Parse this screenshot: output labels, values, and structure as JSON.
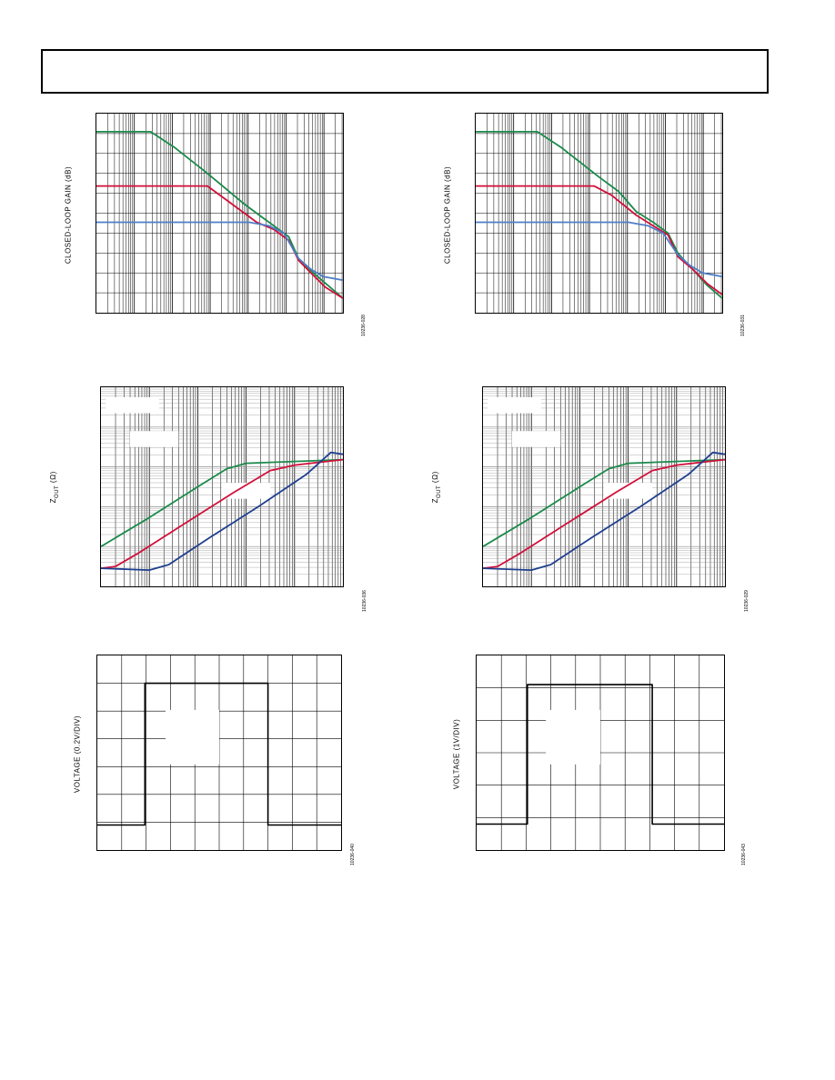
{
  "charts": [
    {
      "id": "gain-left",
      "ylabel": "CLOSED-LOOP GAIN (dB)",
      "code": "10236-028"
    },
    {
      "id": "gain-right",
      "ylabel": "CLOSED-LOOP GAIN (dB)",
      "code": "10236-031"
    },
    {
      "id": "zout-left",
      "ylabel_main": "Z",
      "ylabel_sub": "OUT",
      "ylabel_unit": "(Ω)",
      "code": "10236-036"
    },
    {
      "id": "zout-right",
      "ylabel_main": "Z",
      "ylabel_sub": "OUT",
      "ylabel_unit": "(Ω)",
      "code": "10236-029"
    },
    {
      "id": "pulse-left",
      "ylabel": "VOLTAGE (0.2V/DIV)",
      "code": "10236-040"
    },
    {
      "id": "pulse-right",
      "ylabel": "VOLTAGE (1V/DIV)",
      "code": "10236-043"
    }
  ],
  "colors": {
    "green": "#1a8a4a",
    "red": "#d0103a",
    "blue": "#1f3f8f",
    "lightblue": "#4f7fc8",
    "black": "#000000"
  },
  "chart_data": [
    {
      "type": "line",
      "xscale": "log",
      "x_decades": 6.5,
      "grid": true,
      "series": [
        {
          "color": "green",
          "points": [
            [
              0,
              100
            ],
            [
              0.22,
              100
            ],
            [
              0.32,
              91
            ],
            [
              0.45,
              77
            ],
            [
              0.6,
              60
            ],
            [
              0.68,
              52
            ],
            [
              0.78,
              42
            ],
            [
              0.82,
              30
            ],
            [
              0.88,
              22
            ],
            [
              0.94,
              15
            ],
            [
              1.0,
              8
            ]
          ]
        },
        {
          "color": "red",
          "points": [
            [
              0,
              70
            ],
            [
              0.45,
              70
            ],
            [
              0.55,
              60
            ],
            [
              0.65,
              50
            ],
            [
              0.72,
              46
            ],
            [
              0.78,
              40
            ],
            [
              0.82,
              29
            ],
            [
              0.87,
              22
            ],
            [
              0.93,
              14
            ],
            [
              1.0,
              8
            ]
          ]
        },
        {
          "color": "lightblue",
          "points": [
            [
              0,
              50
            ],
            [
              0.62,
              50
            ],
            [
              0.7,
              48
            ],
            [
              0.76,
              44
            ],
            [
              0.82,
              30
            ],
            [
              0.87,
              24
            ],
            [
              0.92,
              20
            ],
            [
              1.0,
              18
            ]
          ]
        }
      ]
    },
    {
      "type": "line",
      "xscale": "log",
      "x_decades": 6.5,
      "grid": true,
      "series": [
        {
          "color": "green",
          "points": [
            [
              0,
              100
            ],
            [
              0.25,
              100
            ],
            [
              0.35,
              91
            ],
            [
              0.5,
              75
            ],
            [
              0.58,
              67
            ],
            [
              0.65,
              56
            ],
            [
              0.72,
              50
            ],
            [
              0.78,
              44
            ],
            [
              0.82,
              33
            ],
            [
              0.88,
              24
            ],
            [
              0.94,
              15
            ],
            [
              1.0,
              8
            ]
          ]
        },
        {
          "color": "red",
          "points": [
            [
              0,
              70
            ],
            [
              0.48,
              70
            ],
            [
              0.55,
              65
            ],
            [
              0.65,
              54
            ],
            [
              0.72,
              48
            ],
            [
              0.78,
              43
            ],
            [
              0.82,
              31
            ],
            [
              0.88,
              24
            ],
            [
              0.94,
              16
            ],
            [
              1.0,
              10
            ]
          ]
        },
        {
          "color": "lightblue",
          "points": [
            [
              0,
              50
            ],
            [
              0.62,
              50
            ],
            [
              0.7,
              48
            ],
            [
              0.76,
              44
            ],
            [
              0.82,
              32
            ],
            [
              0.87,
              26
            ],
            [
              0.92,
              22
            ],
            [
              1.0,
              20
            ]
          ]
        }
      ]
    },
    {
      "type": "line",
      "xscale": "log",
      "yscale": "log",
      "grid": true,
      "series": [
        {
          "color": "green",
          "points": [
            [
              0,
              22
            ],
            [
              0.2,
              38
            ],
            [
              0.4,
              55
            ],
            [
              0.52,
              65
            ],
            [
              0.6,
              68
            ],
            [
              1.0,
              70
            ]
          ]
        },
        {
          "color": "red",
          "points": [
            [
              0,
              10
            ],
            [
              0.06,
              11
            ],
            [
              0.15,
              18
            ],
            [
              0.35,
              35
            ],
            [
              0.55,
              52
            ],
            [
              0.7,
              64
            ],
            [
              0.8,
              67
            ],
            [
              1.0,
              70
            ]
          ]
        },
        {
          "color": "blue",
          "points": [
            [
              0,
              10
            ],
            [
              0.2,
              9
            ],
            [
              0.28,
              12
            ],
            [
              0.45,
              27
            ],
            [
              0.65,
              44
            ],
            [
              0.85,
              62
            ],
            [
              0.95,
              74
            ],
            [
              1.0,
              73
            ]
          ]
        }
      ]
    },
    {
      "type": "line",
      "xscale": "log",
      "yscale": "log",
      "grid": true,
      "series": [
        {
          "color": "green",
          "points": [
            [
              0,
              22
            ],
            [
              0.2,
              38
            ],
            [
              0.4,
              55
            ],
            [
              0.52,
              65
            ],
            [
              0.6,
              68
            ],
            [
              1.0,
              70
            ]
          ]
        },
        {
          "color": "red",
          "points": [
            [
              0,
              10
            ],
            [
              0.06,
              11
            ],
            [
              0.15,
              18
            ],
            [
              0.35,
              35
            ],
            [
              0.55,
              52
            ],
            [
              0.7,
              64
            ],
            [
              0.8,
              67
            ],
            [
              1.0,
              70
            ]
          ]
        },
        {
          "color": "blue",
          "points": [
            [
              0,
              10
            ],
            [
              0.2,
              9
            ],
            [
              0.28,
              12
            ],
            [
              0.45,
              27
            ],
            [
              0.65,
              44
            ],
            [
              0.85,
              62
            ],
            [
              0.95,
              74
            ],
            [
              1.0,
              73
            ]
          ]
        }
      ]
    },
    {
      "type": "line",
      "grid": true,
      "xdiv": 10,
      "ydiv": 7,
      "series": [
        {
          "color": "black",
          "points": [
            [
              0,
              0.9
            ],
            [
              1.95,
              0.9
            ],
            [
              1.95,
              6.0
            ],
            [
              7.0,
              6.0
            ],
            [
              7.0,
              0.9
            ],
            [
              10,
              0.9
            ]
          ]
        }
      ]
    },
    {
      "type": "line",
      "grid": true,
      "xdiv": 10,
      "ydiv": 6,
      "series": [
        {
          "color": "black",
          "points": [
            [
              0,
              0.8
            ],
            [
              2.05,
              0.8
            ],
            [
              2.05,
              5.1
            ],
            [
              7.1,
              5.1
            ],
            [
              7.1,
              0.8
            ],
            [
              10,
              0.8
            ]
          ]
        }
      ]
    }
  ]
}
